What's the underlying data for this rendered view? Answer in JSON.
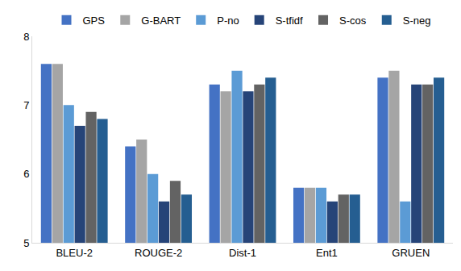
{
  "chart_data": {
    "type": "bar",
    "categories": [
      "BLEU-2",
      "ROUGE-2",
      "Dist-1",
      "Ent1",
      "GRUEN"
    ],
    "series": [
      {
        "name": "GPS",
        "color": "#4472C4",
        "values": [
          7.6,
          6.4,
          7.3,
          5.8,
          7.4
        ]
      },
      {
        "name": "G-BART",
        "color": "#A5A5A5",
        "values": [
          7.6,
          6.5,
          7.2,
          5.8,
          7.5
        ]
      },
      {
        "name": "P-no",
        "color": "#5B9BD5",
        "values": [
          7.0,
          6.0,
          7.5,
          5.8,
          5.6
        ]
      },
      {
        "name": "S-tfidf",
        "color": "#264478",
        "values": [
          6.7,
          5.6,
          7.2,
          5.6,
          7.3
        ]
      },
      {
        "name": "S-cos",
        "color": "#636363",
        "values": [
          6.9,
          5.9,
          7.3,
          5.7,
          7.3
        ]
      },
      {
        "name": "S-neg",
        "color": "#255E91",
        "values": [
          6.8,
          5.7,
          7.4,
          5.7,
          7.4
        ]
      }
    ],
    "ylim": [
      5,
      8
    ],
    "yticks": [
      5,
      6,
      7,
      8
    ],
    "grid": false,
    "legend": "top"
  }
}
